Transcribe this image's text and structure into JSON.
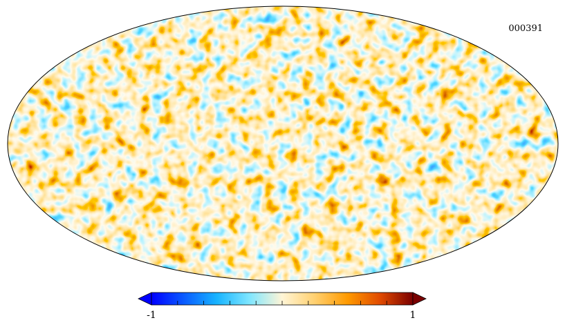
{
  "map_id": "000391",
  "chart_data": {
    "type": "heatmap",
    "projection": "mollweide",
    "title": "",
    "colorbar": {
      "min": -1,
      "max": 1,
      "min_label": "-1",
      "max_label": "1",
      "minor_ticks": 9,
      "extend": "both",
      "colors": [
        "#0000ff",
        "#0a5cff",
        "#18b4ff",
        "#7fe6ff",
        "#fff5d6",
        "#ffd070",
        "#ff9a00",
        "#e04a00",
        "#7a0000"
      ]
    },
    "field": {
      "description_mean": 0,
      "range": [
        -1,
        1
      ]
    }
  }
}
